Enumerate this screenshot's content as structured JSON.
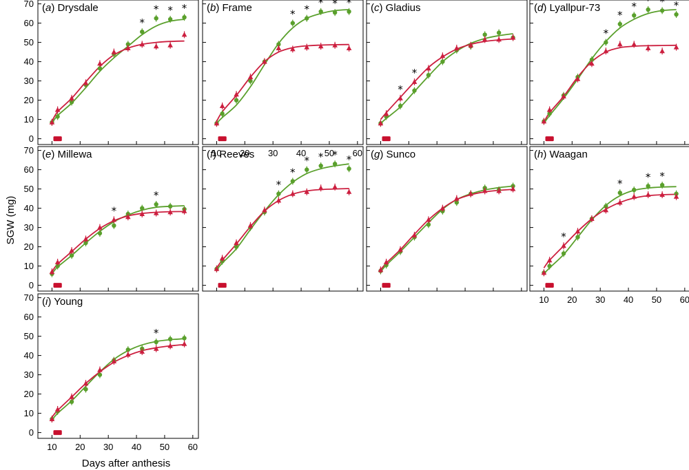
{
  "figure": {
    "ylabel": "SGW (mg)",
    "xlabel": "Days after anthesis"
  },
  "colors": {
    "green": "#5aa02c",
    "red": "#cc1f3f",
    "bar": "#c8102e"
  },
  "chart_data": [
    {
      "type": "scatter",
      "label": "(a)",
      "name": "Drysdale",
      "x_ticks": [],
      "y_ticks": [
        "0",
        "10",
        "20",
        "30",
        "40",
        "50",
        "60",
        "70"
      ],
      "xlim": [
        5,
        62
      ],
      "ylim": [
        -3,
        72
      ],
      "heat_bar": [
        10.5,
        13.5
      ],
      "series": [
        {
          "name": "green",
          "x": [
            10,
            12,
            17,
            22,
            27,
            32,
            37,
            42,
            47,
            52,
            57
          ],
          "y": [
            8.5,
            11.5,
            19,
            28,
            36.5,
            44,
            49,
            55.5,
            62.5,
            62,
            63
          ],
          "fit": [
            8,
            12,
            18.5,
            26.5,
            35,
            42,
            48,
            54,
            58.5,
            61,
            62
          ]
        },
        {
          "name": "red",
          "x": [
            10,
            12,
            17,
            22,
            27,
            32,
            37,
            42,
            47,
            52,
            57
          ],
          "y": [
            8.5,
            15,
            21,
            29,
            39,
            45,
            47,
            49,
            48,
            48.5,
            54
          ],
          "fit": [
            9,
            14,
            21,
            29.5,
            37.5,
            43.5,
            47,
            49,
            50,
            50.5,
            50.7
          ]
        }
      ],
      "stars": [
        42,
        47,
        52,
        57
      ]
    },
    {
      "type": "scatter",
      "label": "(b)",
      "name": "Frame",
      "x_ticks": [
        "10",
        "20",
        "30",
        "40",
        "50",
        "60"
      ],
      "y_ticks": [],
      "xlim": [
        5,
        62
      ],
      "ylim": [
        -3,
        72
      ],
      "heat_bar": [
        10.5,
        13.5
      ],
      "series": [
        {
          "name": "green",
          "x": [
            10,
            12,
            17,
            22,
            27,
            32,
            37,
            42,
            47,
            52,
            57
          ],
          "y": [
            8,
            13,
            20,
            30,
            40,
            49,
            60,
            62.5,
            66,
            65.5,
            66
          ],
          "fit": [
            8,
            11,
            17.5,
            27,
            38.5,
            49.5,
            57.5,
            62.5,
            65,
            66.5,
            67
          ]
        },
        {
          "name": "red",
          "x": [
            10,
            12,
            17,
            22,
            27,
            32,
            37,
            42,
            47,
            52,
            57
          ],
          "y": [
            8,
            17,
            23,
            32,
            40,
            47,
            46.5,
            47.5,
            48,
            48.5,
            47
          ],
          "fit": [
            9,
            14,
            22.5,
            32,
            40,
            45,
            47.3,
            48.2,
            48.6,
            48.8,
            48.9
          ]
        }
      ],
      "stars": [
        37,
        42,
        47,
        52,
        57
      ]
    },
    {
      "type": "scatter",
      "label": "(c)",
      "name": "Gladius",
      "x_ticks": [],
      "y_ticks": [],
      "xlim": [
        5,
        62
      ],
      "ylim": [
        -3,
        72
      ],
      "heat_bar": [
        10.5,
        13.5
      ],
      "series": [
        {
          "name": "green",
          "x": [
            10,
            12,
            17,
            22,
            27,
            32,
            37,
            42,
            47,
            52,
            57
          ],
          "y": [
            8,
            11.5,
            17,
            25,
            33,
            40,
            46,
            48,
            54,
            55,
            52.5
          ],
          "fit": [
            8,
            10.5,
            16.5,
            24.5,
            32.5,
            40,
            45.5,
            49.5,
            52,
            53.5,
            54.5
          ]
        },
        {
          "name": "red",
          "x": [
            10,
            12,
            17,
            22,
            27,
            32,
            37,
            42,
            47,
            52,
            57
          ],
          "y": [
            8,
            13,
            21,
            29.5,
            36.5,
            43,
            47,
            48.5,
            51.5,
            51.5,
            52.5
          ],
          "fit": [
            10,
            13.5,
            21.5,
            29.5,
            37,
            42.5,
            46.5,
            49,
            50.5,
            51.3,
            51.8
          ]
        }
      ],
      "stars": [
        17,
        22
      ]
    },
    {
      "type": "scatter",
      "label": "(d)",
      "name": "Lyallpur-73",
      "x_ticks": [],
      "y_ticks": [],
      "xlim": [
        5,
        62
      ],
      "ylim": [
        -3,
        72
      ],
      "heat_bar": [
        10.5,
        13.5
      ],
      "series": [
        {
          "name": "green",
          "x": [
            10,
            12,
            17,
            22,
            27,
            32,
            37,
            42,
            47,
            52,
            57
          ],
          "y": [
            9,
            13,
            22.5,
            32,
            41,
            50,
            59.5,
            64,
            67,
            66.5,
            64.5
          ],
          "fit": [
            8,
            12,
            21,
            31,
            41.5,
            50.5,
            57.5,
            62,
            65,
            66.5,
            67
          ]
        },
        {
          "name": "red",
          "x": [
            10,
            12,
            17,
            22,
            27,
            32,
            37,
            42,
            47,
            52,
            57
          ],
          "y": [
            9,
            15,
            22,
            31,
            39,
            45.5,
            49,
            49,
            47,
            45.5,
            47.5
          ],
          "fit": [
            8.5,
            13.5,
            22,
            32,
            40,
            45,
            47.3,
            48,
            48.3,
            48.4,
            48.5
          ]
        }
      ],
      "stars": [
        32,
        37,
        42,
        47,
        52,
        57
      ]
    },
    {
      "type": "scatter",
      "label": "(e)",
      "name": "Millewa",
      "x_ticks": [],
      "y_ticks": [
        "0",
        "10",
        "20",
        "30",
        "40",
        "50",
        "60",
        "70"
      ],
      "xlim": [
        5,
        62
      ],
      "ylim": [
        -3,
        72
      ],
      "heat_bar": [
        10.5,
        13.5
      ],
      "series": [
        {
          "name": "green",
          "x": [
            10,
            12,
            17,
            22,
            27,
            32,
            37,
            42,
            47,
            52,
            57
          ],
          "y": [
            6,
            10,
            15.5,
            22,
            27,
            31,
            37,
            40,
            42,
            41,
            39.5
          ],
          "fit": [
            6,
            9.5,
            15.5,
            22,
            28,
            33,
            36.5,
            39,
            40.5,
            41,
            41.3
          ]
        },
        {
          "name": "red",
          "x": [
            10,
            12,
            17,
            22,
            27,
            32,
            37,
            42,
            47,
            52,
            57
          ],
          "y": [
            7,
            12,
            18,
            24,
            30,
            34,
            35.5,
            37,
            37.5,
            38,
            38.5
          ],
          "fit": [
            7,
            11,
            17.5,
            24,
            29.5,
            33.5,
            36,
            37.3,
            37.9,
            38.2,
            38.3
          ]
        }
      ],
      "stars": [
        32,
        47
      ]
    },
    {
      "type": "scatter",
      "label": "(f)",
      "name": "Reeves",
      "x_ticks": [],
      "y_ticks": [],
      "xlim": [
        5,
        62
      ],
      "ylim": [
        -3,
        72
      ],
      "heat_bar": [
        10.5,
        13.5
      ],
      "series": [
        {
          "name": "green",
          "x": [
            10,
            12,
            17,
            22,
            27,
            32,
            37,
            42,
            47,
            52,
            57
          ],
          "y": [
            8.5,
            12.5,
            20,
            30,
            38,
            47.5,
            54,
            60,
            62,
            63,
            60.5
          ],
          "fit": [
            8,
            11.5,
            19,
            29,
            38.5,
            47,
            53.5,
            58,
            60.5,
            62,
            63
          ]
        },
        {
          "name": "red",
          "x": [
            10,
            12,
            17,
            22,
            27,
            32,
            37,
            42,
            47,
            52,
            57
          ],
          "y": [
            8.5,
            14,
            22,
            31,
            39,
            44,
            47.5,
            48.5,
            50.5,
            51,
            48.5
          ],
          "fit": [
            9,
            13,
            21.5,
            30.5,
            38.5,
            44,
            47.3,
            49,
            49.7,
            50,
            50.2
          ]
        }
      ],
      "stars": [
        32,
        37,
        42,
        47,
        52,
        57
      ]
    },
    {
      "type": "scatter",
      "label": "(g)",
      "name": "Sunco",
      "x_ticks": [],
      "y_ticks": [],
      "xlim": [
        5,
        62
      ],
      "ylim": [
        -3,
        72
      ],
      "heat_bar": [
        10.5,
        13.5
      ],
      "series": [
        {
          "name": "green",
          "x": [
            10,
            12,
            17,
            22,
            27,
            32,
            37,
            42,
            47,
            52,
            57
          ],
          "y": [
            7.5,
            10.5,
            17.5,
            25,
            31.5,
            38.5,
            43,
            47.5,
            50.5,
            49.5,
            51.5
          ],
          "fit": [
            7,
            10.5,
            17.5,
            25,
            32.5,
            39.5,
            44.5,
            47.5,
            49.5,
            50.7,
            51.5
          ]
        },
        {
          "name": "red",
          "x": [
            10,
            12,
            17,
            22,
            27,
            32,
            37,
            42,
            47,
            52,
            57
          ],
          "y": [
            8,
            12,
            18.5,
            26,
            34,
            40,
            45,
            47.5,
            49,
            49,
            50
          ],
          "fit": [
            8,
            11.5,
            18.5,
            26.5,
            34,
            40,
            44.5,
            47,
            48.5,
            49.3,
            49.8
          ]
        }
      ],
      "stars": []
    },
    {
      "type": "scatter",
      "label": "(h)",
      "name": "Waagan",
      "x_ticks": [
        "10",
        "20",
        "30",
        "40",
        "50",
        "60"
      ],
      "y_ticks": [],
      "xlim": [
        5,
        62
      ],
      "ylim": [
        -3,
        72
      ],
      "heat_bar": [
        10.5,
        13.5
      ],
      "series": [
        {
          "name": "green",
          "x": [
            10,
            12,
            17,
            22,
            27,
            32,
            37,
            42,
            47,
            52,
            57
          ],
          "y": [
            6.5,
            10,
            16.5,
            25,
            34.5,
            41,
            48,
            49.5,
            51.5,
            52,
            47.5
          ],
          "fit": [
            6,
            9,
            16,
            25,
            34,
            41.5,
            46.5,
            49.3,
            50.5,
            51,
            51.2
          ]
        },
        {
          "name": "red",
          "x": [
            10,
            12,
            17,
            22,
            27,
            32,
            37,
            42,
            47,
            52,
            57
          ],
          "y": [
            6.5,
            13,
            20.5,
            28,
            34.5,
            39,
            43,
            46,
            47,
            47,
            46
          ],
          "fit": [
            9,
            13,
            20.5,
            28,
            34.5,
            39.5,
            43,
            45.3,
            46.5,
            47,
            47.2
          ]
        }
      ],
      "stars": [
        17,
        37,
        47,
        52
      ]
    },
    {
      "type": "scatter",
      "label": "(i)",
      "name": "Young",
      "x_ticks": [
        "10",
        "20",
        "30",
        "40",
        "50",
        "60"
      ],
      "y_ticks": [
        "0",
        "10",
        "20",
        "30",
        "40",
        "50",
        "60",
        "70"
      ],
      "xlim": [
        5,
        62
      ],
      "ylim": [
        -3,
        72
      ],
      "heat_bar": [
        10.5,
        13.5
      ],
      "series": [
        {
          "name": "green",
          "x": [
            10,
            12,
            17,
            22,
            27,
            32,
            37,
            42,
            47,
            52,
            57
          ],
          "y": [
            7,
            11,
            16,
            22.5,
            30,
            37.5,
            43,
            43.5,
            47,
            48.5,
            49
          ],
          "fit": [
            6.5,
            10,
            16.5,
            24,
            31.5,
            38,
            42.5,
            45.5,
            47.3,
            48.2,
            48.7
          ]
        },
        {
          "name": "red",
          "x": [
            10,
            12,
            17,
            22,
            27,
            32,
            37,
            42,
            47,
            52,
            57
          ],
          "y": [
            7,
            12,
            18.5,
            25.5,
            32.5,
            37,
            40.5,
            42,
            43.5,
            45,
            46
          ],
          "fit": [
            8,
            11.5,
            18.5,
            25.5,
            31.5,
            36.5,
            40,
            42.5,
            44,
            45,
            45.7
          ]
        }
      ],
      "stars": [
        47
      ]
    }
  ]
}
